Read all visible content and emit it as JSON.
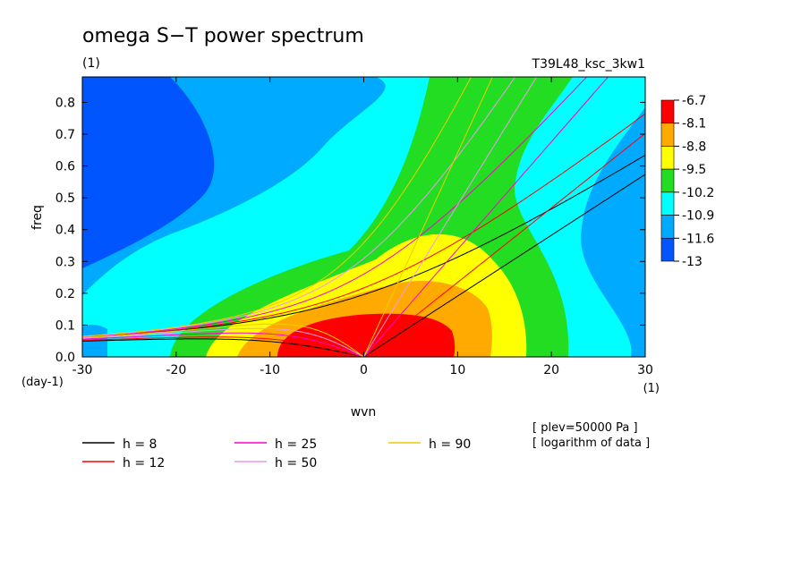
{
  "chart_data": {
    "type": "heatmap",
    "title": "omega S−T power spectrum",
    "units": "(1)",
    "run_id": "T39L48_ksc_3kw1",
    "xlabel": "wvn",
    "ylabel": "freq",
    "x_units": "(1)",
    "y_units": "(day-1)",
    "xlim": [
      -30,
      30
    ],
    "ylim": [
      0,
      0.88
    ],
    "x_ticks": [
      -30,
      -20,
      -10,
      0,
      10,
      20,
      30
    ],
    "y_ticks": [
      0.0,
      0.1,
      0.2,
      0.3,
      0.4,
      0.5,
      0.6,
      0.7,
      0.8
    ],
    "colorbar": {
      "levels": [
        "-6.7",
        "-8.1",
        "-8.8",
        "-9.5",
        "-10.2",
        "-10.9",
        "-11.6",
        "-13"
      ],
      "colors": [
        "#ff0000",
        "#ffaa00",
        "#ffff00",
        "#22dd22",
        "#00ffff",
        "#00aaff",
        "#0055ff"
      ]
    },
    "dispersion_curves": [
      {
        "label": "h = 8",
        "h": 8,
        "color": "#000000"
      },
      {
        "label": "h = 12",
        "h": 12,
        "color": "#ff0000"
      },
      {
        "label": "h = 25",
        "h": 25,
        "color": "#ff00cc"
      },
      {
        "label": "h = 50",
        "h": 50,
        "color": "#ee99ee"
      },
      {
        "label": "h = 90",
        "h": 90,
        "color": "#eecc00"
      }
    ],
    "annotations": [
      "[ plev=50000 Pa ]",
      "[ logarithm of data ]"
    ]
  }
}
